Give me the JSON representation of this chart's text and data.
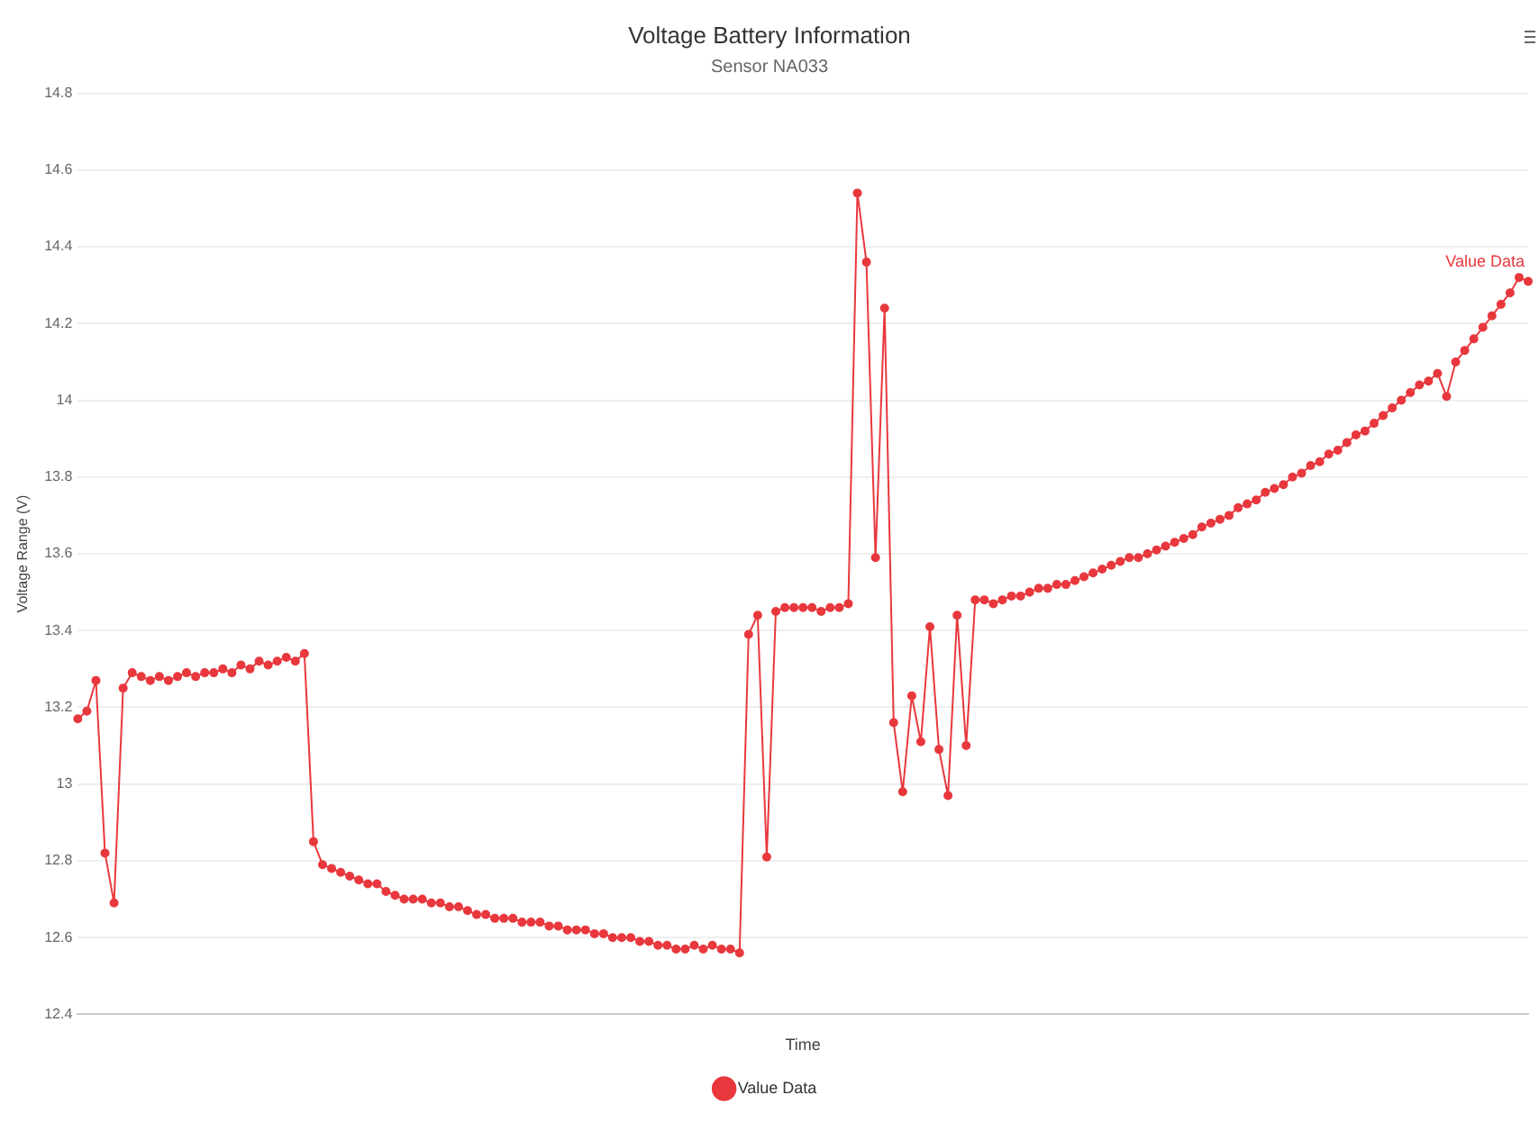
{
  "chart_data": {
    "type": "line",
    "title": "Voltage Battery Information",
    "subtitle": "Sensor NA033",
    "xlabel": "Time",
    "ylabel": "Voltage Range (V)",
    "categories": [
      null,
      null,
      null,
      null,
      null,
      null,
      null,
      null,
      null,
      null,
      null,
      null,
      null,
      null,
      null,
      null,
      null,
      null,
      null,
      null,
      null,
      null,
      null,
      null,
      null,
      null,
      null,
      null,
      null,
      null,
      null,
      null,
      null,
      null,
      null,
      null,
      null,
      null,
      null,
      null,
      null,
      null,
      null,
      null,
      null,
      null,
      null,
      null,
      null,
      null,
      null,
      null,
      null,
      null,
      null,
      null,
      null,
      null,
      null,
      null,
      null,
      null,
      null,
      null,
      null,
      null,
      null,
      null,
      null,
      null,
      null,
      null,
      null,
      null,
      null,
      null,
      null,
      null,
      null,
      null,
      null,
      null,
      null,
      null,
      null,
      null,
      null,
      null,
      null,
      null,
      null,
      null,
      null,
      null,
      null,
      null,
      null,
      null,
      null,
      null,
      null,
      null,
      null,
      null,
      null,
      null,
      null,
      null,
      null,
      null,
      null,
      null,
      null,
      null,
      null,
      null,
      null,
      null,
      null,
      null,
      null,
      null,
      null,
      null,
      null,
      null,
      null,
      null,
      null,
      null,
      null,
      null,
      null,
      null,
      null,
      null,
      null,
      null,
      null,
      null,
      null,
      null,
      null,
      null,
      null,
      null,
      null,
      null,
      null,
      null,
      null,
      null,
      null,
      null,
      null,
      null,
      null,
      null,
      null,
      null,
      null
    ],
    "series": [
      {
        "name": "Value Data",
        "color": "#e8383d",
        "values": [
          13.17,
          13.19,
          13.27,
          12.82,
          12.69,
          13.25,
          13.29,
          13.28,
          13.27,
          13.28,
          13.27,
          13.28,
          13.29,
          13.28,
          13.29,
          13.29,
          13.3,
          13.29,
          13.31,
          13.3,
          13.32,
          13.31,
          13.32,
          13.33,
          13.32,
          13.34,
          12.85,
          12.79,
          12.78,
          12.77,
          12.76,
          12.75,
          12.74,
          12.74,
          12.72,
          12.71,
          12.7,
          12.7,
          12.7,
          12.69,
          12.69,
          12.68,
          12.68,
          12.67,
          12.66,
          12.66,
          12.65,
          12.65,
          12.65,
          12.64,
          12.64,
          12.64,
          12.63,
          12.63,
          12.62,
          12.62,
          12.62,
          12.61,
          12.61,
          12.6,
          12.6,
          12.6,
          12.59,
          12.59,
          12.58,
          12.58,
          12.57,
          12.57,
          12.58,
          12.57,
          12.58,
          12.57,
          12.57,
          12.56,
          13.39,
          13.44,
          12.81,
          13.45,
          13.46,
          13.46,
          13.46,
          13.46,
          13.45,
          13.46,
          13.46,
          13.47,
          14.54,
          14.36,
          13.59,
          14.24,
          13.16,
          12.98,
          13.23,
          13.11,
          13.41,
          13.09,
          12.97,
          13.44,
          13.1,
          13.48,
          13.48,
          13.47,
          13.48,
          13.49,
          13.49,
          13.5,
          13.51,
          13.51,
          13.52,
          13.52,
          13.53,
          13.54,
          13.55,
          13.56,
          13.57,
          13.58,
          13.59,
          13.59,
          13.6,
          13.61,
          13.62,
          13.63,
          13.64,
          13.65,
          13.67,
          13.68,
          13.69,
          13.7,
          13.72,
          13.73,
          13.74,
          13.76,
          13.77,
          13.78,
          13.8,
          13.81,
          13.83,
          13.84,
          13.86,
          13.87,
          13.89,
          13.91,
          13.92,
          13.94,
          13.96,
          13.98,
          14.0,
          14.02,
          14.04,
          14.05,
          14.07,
          14.01,
          14.1,
          14.13,
          14.16,
          14.19,
          14.22,
          14.25,
          14.28,
          14.32,
          14.31
        ]
      }
    ],
    "ylim": [
      12.4,
      14.8
    ],
    "yticks": [
      12.4,
      12.6,
      12.8,
      13,
      13.2,
      13.4,
      13.6,
      13.8,
      14,
      14.2,
      14.4,
      14.6,
      14.8
    ],
    "grid": "y",
    "legend": "bottom",
    "marker": "circle",
    "line_style": "solid",
    "tick_labels": "y"
  }
}
